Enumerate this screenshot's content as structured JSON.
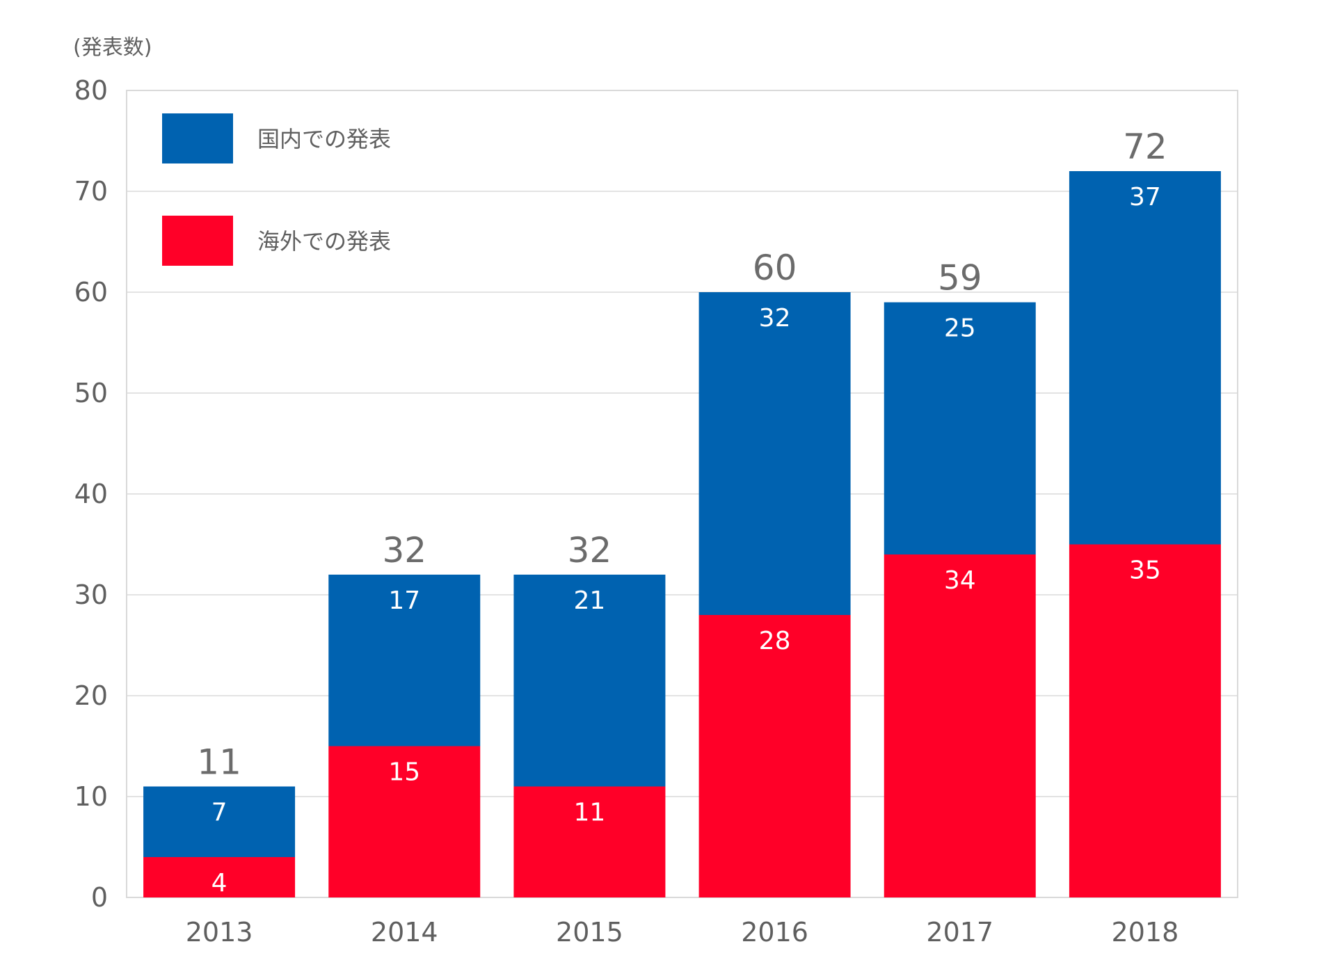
{
  "chart_data": {
    "type": "bar",
    "stacked": true,
    "categories": [
      "2013",
      "2014",
      "2015",
      "2016",
      "2017",
      "2018"
    ],
    "series": [
      {
        "name": "海外での発表",
        "color": "#ff0028",
        "values": [
          4,
          15,
          11,
          28,
          34,
          35
        ]
      },
      {
        "name": "国内での発表",
        "color": "#0062b0",
        "values": [
          7,
          17,
          21,
          32,
          25,
          37
        ]
      }
    ],
    "totals": [
      11,
      32,
      32,
      60,
      59,
      72
    ],
    "ylabel": "(発表数)",
    "ylim": [
      0,
      80
    ],
    "yticks": [
      0,
      10,
      20,
      30,
      40,
      50,
      60,
      70,
      80
    ],
    "grid": true,
    "legend_position": "top-left",
    "legend_order": [
      "国内での発表",
      "海外での発表"
    ]
  }
}
